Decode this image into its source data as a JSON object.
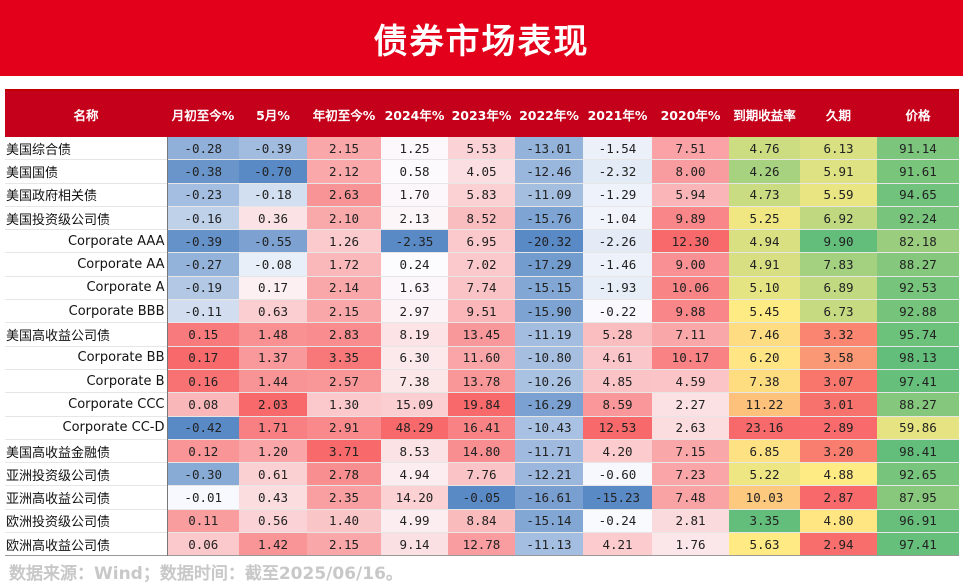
{
  "title": "债券市场表现",
  "headers": [
    "名称",
    "月初至今%",
    "5月%",
    "年初至今%",
    "2024年%",
    "2023年%",
    "2022年%",
    "2021年%",
    "2020年%",
    "到期收益率",
    "久期",
    "价格"
  ],
  "rows": [
    {
      "name": "美国综合债",
      "sub": false,
      "v": [
        "-0.28",
        "-0.39",
        "2.15",
        "1.25",
        "5.53",
        "-13.01",
        "-1.54",
        "7.51",
        "4.76",
        "6.13",
        "91.14"
      ]
    },
    {
      "name": "美国国债",
      "sub": false,
      "v": [
        "-0.38",
        "-0.70",
        "2.12",
        "0.58",
        "4.05",
        "-12.46",
        "-2.32",
        "8.00",
        "4.26",
        "5.91",
        "91.61"
      ]
    },
    {
      "name": "美国政府相关债",
      "sub": false,
      "v": [
        "-0.23",
        "-0.18",
        "2.63",
        "1.70",
        "5.83",
        "-11.09",
        "-1.29",
        "5.94",
        "4.73",
        "5.59",
        "94.65"
      ]
    },
    {
      "name": "美国投资级公司债",
      "sub": false,
      "v": [
        "-0.16",
        "0.36",
        "2.10",
        "2.13",
        "8.52",
        "-15.76",
        "-1.04",
        "9.89",
        "5.25",
        "6.92",
        "92.24"
      ]
    },
    {
      "name": "Corporate AAA",
      "sub": true,
      "v": [
        "-0.39",
        "-0.55",
        "1.26",
        "-2.35",
        "6.95",
        "-20.32",
        "-2.26",
        "12.30",
        "4.94",
        "9.90",
        "82.18"
      ]
    },
    {
      "name": "Corporate AA",
      "sub": true,
      "v": [
        "-0.27",
        "-0.08",
        "1.72",
        "0.24",
        "7.02",
        "-17.29",
        "-1.46",
        "9.00",
        "4.91",
        "7.83",
        "88.27"
      ]
    },
    {
      "name": "Corporate A",
      "sub": true,
      "v": [
        "-0.19",
        "0.17",
        "2.14",
        "1.63",
        "7.74",
        "-15.15",
        "-1.93",
        "10.06",
        "5.10",
        "6.89",
        "92.53"
      ]
    },
    {
      "name": "Corporate BBB",
      "sub": true,
      "v": [
        "-0.11",
        "0.63",
        "2.15",
        "2.97",
        "9.51",
        "-15.90",
        "-0.22",
        "9.88",
        "5.45",
        "6.73",
        "92.88"
      ]
    },
    {
      "name": "美国高收益公司债",
      "sub": false,
      "v": [
        "0.15",
        "1.48",
        "2.83",
        "8.19",
        "13.45",
        "-11.19",
        "5.28",
        "7.11",
        "7.46",
        "3.32",
        "95.74"
      ]
    },
    {
      "name": "Corporate BB",
      "sub": true,
      "v": [
        "0.17",
        "1.37",
        "3.35",
        "6.30",
        "11.60",
        "-10.80",
        "4.61",
        "10.17",
        "6.20",
        "3.58",
        "98.13"
      ]
    },
    {
      "name": "Corporate B",
      "sub": true,
      "v": [
        "0.16",
        "1.44",
        "2.57",
        "7.38",
        "13.78",
        "-10.26",
        "4.85",
        "4.59",
        "7.38",
        "3.07",
        "97.41"
      ]
    },
    {
      "name": "Corporate CCC",
      "sub": true,
      "v": [
        "0.08",
        "2.03",
        "1.30",
        "15.09",
        "19.84",
        "-16.29",
        "8.59",
        "2.27",
        "11.22",
        "3.01",
        "88.27"
      ]
    },
    {
      "name": "Corporate CC-D",
      "sub": true,
      "v": [
        "-0.42",
        "1.71",
        "2.91",
        "48.29",
        "16.41",
        "-10.43",
        "12.53",
        "2.63",
        "23.16",
        "2.89",
        "59.86"
      ]
    },
    {
      "name": "美国高收益金融债",
      "sub": false,
      "v": [
        "0.12",
        "1.20",
        "3.71",
        "8.53",
        "14.80",
        "-11.71",
        "4.20",
        "7.15",
        "6.85",
        "3.20",
        "98.41"
      ]
    },
    {
      "name": "亚洲投资级公司债",
      "sub": false,
      "v": [
        "-0.30",
        "0.61",
        "2.78",
        "4.94",
        "7.76",
        "-12.21",
        "-0.60",
        "7.23",
        "5.22",
        "4.88",
        "92.65"
      ]
    },
    {
      "name": "亚洲高收益公司债",
      "sub": false,
      "v": [
        "-0.01",
        "0.43",
        "2.35",
        "14.20",
        "-0.05",
        "-16.61",
        "-15.23",
        "7.48",
        "10.03",
        "2.87",
        "87.95"
      ]
    },
    {
      "name": "欧洲投资级公司债",
      "sub": false,
      "v": [
        "0.11",
        "0.56",
        "1.40",
        "4.99",
        "8.84",
        "-15.14",
        "-0.24",
        "2.81",
        "3.35",
        "4.80",
        "96.91"
      ]
    },
    {
      "name": "欧洲高收益公司债",
      "sub": false,
      "v": [
        "0.06",
        "1.42",
        "2.15",
        "9.14",
        "12.78",
        "-11.13",
        "4.21",
        "1.76",
        "5.63",
        "2.94",
        "97.41"
      ]
    }
  ],
  "footer": "数据来源：Wind；数据时间：截至2025/06/16。"
}
